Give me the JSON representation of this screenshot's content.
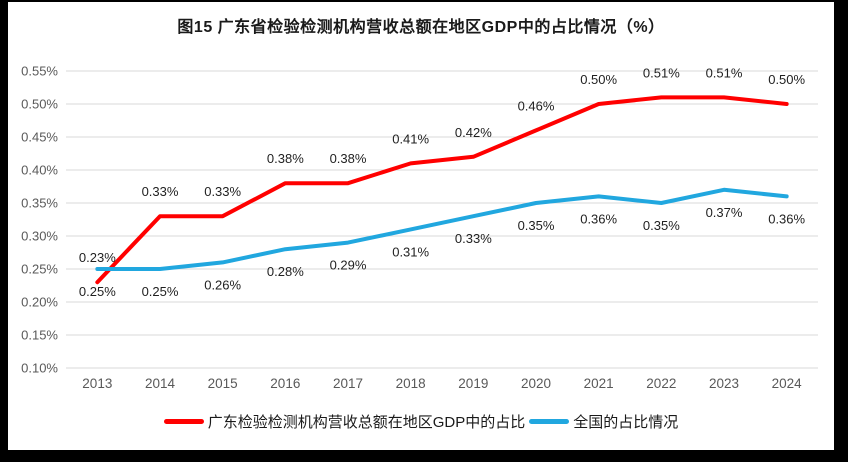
{
  "page": {
    "title": "图15  广东省检验检测机构营收总额在地区GDP中的占比情况（%）"
  },
  "chart_data": {
    "type": "line",
    "title": "图15  广东省检验检测机构营收总额在地区GDP中的占比情况（%）",
    "categories": [
      "2013",
      "2014",
      "2015",
      "2016",
      "2017",
      "2018",
      "2019",
      "2020",
      "2021",
      "2022",
      "2023",
      "2024"
    ],
    "series": [
      {
        "name": "广东检验检测机构营收总额在地区GDP中的占比",
        "color": "#ff0000",
        "values": [
          0.23,
          0.33,
          0.33,
          0.38,
          0.38,
          0.41,
          0.42,
          0.46,
          0.5,
          0.51,
          0.51,
          0.5
        ],
        "labels": [
          "0.23%",
          "0.33%",
          "0.33%",
          "0.38%",
          "0.38%",
          "0.41%",
          "0.42%",
          "0.46%",
          "0.50%",
          "0.51%",
          "0.51%",
          "0.50%"
        ],
        "label_position": "above"
      },
      {
        "name": "全国的占比情况",
        "color": "#21a7df",
        "values": [
          0.25,
          0.25,
          0.26,
          0.28,
          0.29,
          0.31,
          0.33,
          0.35,
          0.36,
          0.35,
          0.37,
          0.36
        ],
        "labels": [
          "0.25%",
          "0.25%",
          "0.26%",
          "0.28%",
          "0.29%",
          "0.31%",
          "0.33%",
          "0.35%",
          "0.36%",
          "0.35%",
          "0.37%",
          "0.36%"
        ],
        "label_position": "below"
      }
    ],
    "ylim": [
      0.1,
      0.55
    ],
    "ytick_step": 0.05,
    "ytick_labels": [
      "0.55%",
      "0.50%",
      "0.45%",
      "0.40%",
      "0.35%",
      "0.30%",
      "0.25%",
      "0.20%",
      "0.15%",
      "0.10%"
    ],
    "xlabel": "",
    "ylabel": "",
    "grid": true,
    "legend_position": "bottom"
  },
  "colors": {
    "background": "#000000",
    "page": "#ffffff",
    "gridline": "#d9d9d9",
    "axis_text": "#595959",
    "data_label_text": "#1f1f1f",
    "series_guangdong": "#ff0000",
    "series_national": "#21a7df"
  }
}
